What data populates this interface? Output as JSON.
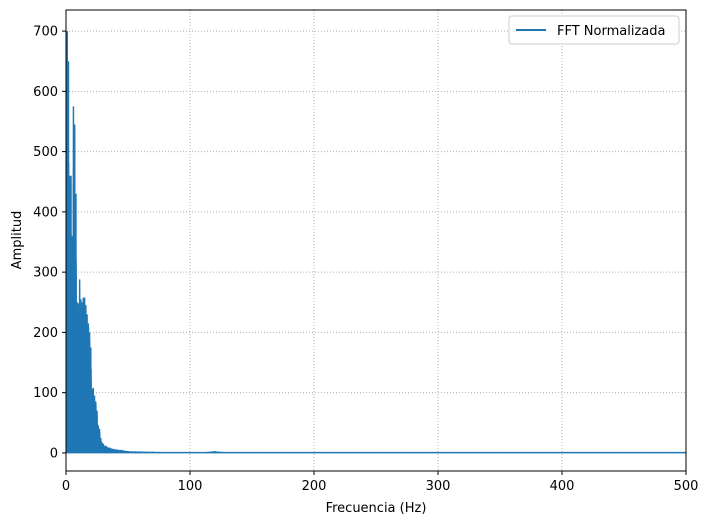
{
  "chart_data": {
    "type": "line",
    "title": "",
    "xlabel": "Frecuencia (Hz)",
    "ylabel": "Amplitud",
    "xlim": [
      0,
      500
    ],
    "ylim": [
      -30,
      735
    ],
    "xticks": [
      "0",
      "100",
      "200",
      "300",
      "400",
      "500"
    ],
    "yticks": [
      "0",
      "100",
      "200",
      "300",
      "400",
      "500",
      "600",
      "700"
    ],
    "grid": true,
    "legend_position": "top-right",
    "series_color": "#1f77b4",
    "series": [
      {
        "name": "FFT Normalizada",
        "x": [
          0,
          1,
          2,
          3,
          4,
          5,
          6,
          7,
          8,
          9,
          10,
          11,
          12,
          13,
          14,
          15,
          16,
          17,
          18,
          19,
          20,
          21,
          22,
          23,
          24,
          25,
          26,
          27,
          28,
          30,
          32,
          35,
          40,
          45,
          50,
          60,
          70,
          80,
          90,
          100,
          110,
          120,
          130,
          150,
          200,
          300,
          400,
          500
        ],
        "values": [
          690,
          700,
          650,
          460,
          460,
          360,
          575,
          545,
          430,
          250,
          245,
          288,
          255,
          250,
          258,
          258,
          245,
          230,
          215,
          200,
          175,
          105,
          108,
          95,
          85,
          70,
          45,
          40,
          25,
          15,
          12,
          9,
          6,
          5,
          3,
          2.5,
          2,
          1.5,
          1.5,
          1.5,
          1.2,
          3,
          0.8,
          0.6,
          0.4,
          0.3,
          0.2,
          0.2
        ]
      }
    ]
  }
}
